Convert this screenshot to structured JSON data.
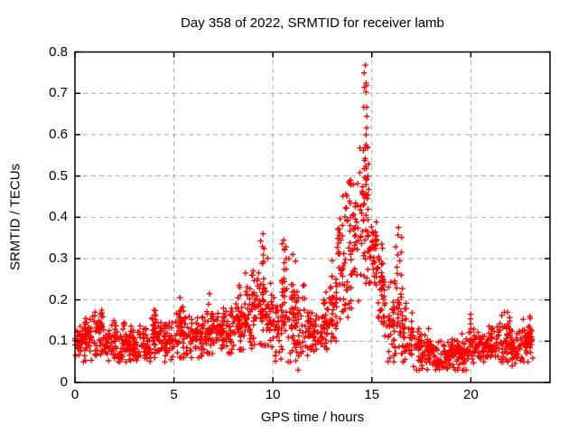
{
  "figure": {
    "title": "Day 358 of 2022, SRMTID for receiver lamb",
    "background": "#ffffff"
  },
  "chart_data": {
    "type": "scatter",
    "title": "Day 358 of 2022, SRMTID for receiver lamb",
    "xlabel": "GPS time / hours",
    "ylabel": "SRMTID / TECUs",
    "xlim": [
      0,
      24
    ],
    "ylim": [
      0,
      0.8
    ],
    "xticks": [
      0,
      5,
      10,
      15,
      20
    ],
    "xtick_labels": [
      "0",
      "5",
      "10",
      "15",
      "20"
    ],
    "yticks": [
      0,
      0.1,
      0.2,
      0.3,
      0.4,
      0.5,
      0.6,
      0.7,
      0.8
    ],
    "ytick_labels": [
      "0",
      "0.1",
      "0.2",
      "0.3",
      "0.4",
      "0.5",
      "0.6",
      "0.7",
      "0.8"
    ],
    "grid": {
      "on": true,
      "color": "#aaaaaa",
      "dash": "5,4"
    },
    "border_color": "#000000",
    "marker": {
      "glyph": "plus",
      "color": "#ff0000",
      "half_arm": 3.2,
      "stroke_width": 1.35
    },
    "legend": null,
    "data_start_hour": 0.0,
    "data_end_hour": 23.15,
    "peak": {
      "hour": 14.7,
      "value": 0.77
    },
    "seed": 1358,
    "band_envelope": [
      {
        "t0": 0.0,
        "t1": 0.5,
        "lo": 0.05,
        "hi": 0.14,
        "c": 0.095,
        "n": 36
      },
      {
        "t0": 0.5,
        "t1": 1.0,
        "lo": 0.04,
        "hi": 0.16,
        "c": 0.1,
        "n": 36
      },
      {
        "t0": 1.0,
        "t1": 1.5,
        "lo": 0.05,
        "hi": 0.17,
        "c": 0.105,
        "n": 36
      },
      {
        "t0": 1.5,
        "t1": 2.1,
        "lo": 0.05,
        "hi": 0.15,
        "c": 0.095,
        "n": 42
      },
      {
        "t0": 2.1,
        "t1": 2.8,
        "lo": 0.05,
        "hi": 0.14,
        "c": 0.09,
        "n": 48
      },
      {
        "t0": 2.8,
        "t1": 3.4,
        "lo": 0.04,
        "hi": 0.14,
        "c": 0.09,
        "n": 42
      },
      {
        "t0": 3.4,
        "t1": 3.8,
        "lo": 0.03,
        "hi": 0.13,
        "c": 0.085,
        "n": 28
      },
      {
        "t0": 3.8,
        "t1": 4.3,
        "lo": 0.06,
        "hi": 0.17,
        "c": 0.11,
        "n": 38
      },
      {
        "t0": 4.3,
        "t1": 5.0,
        "lo": 0.05,
        "hi": 0.15,
        "c": 0.1,
        "n": 50
      },
      {
        "t0": 5.0,
        "t1": 5.6,
        "lo": 0.06,
        "hi": 0.2,
        "c": 0.12,
        "n": 44
      },
      {
        "t0": 5.6,
        "t1": 6.4,
        "lo": 0.06,
        "hi": 0.17,
        "c": 0.11,
        "n": 56
      },
      {
        "t0": 6.4,
        "t1": 7.0,
        "lo": 0.07,
        "hi": 0.21,
        "c": 0.125,
        "n": 44
      },
      {
        "t0": 7.0,
        "t1": 7.9,
        "lo": 0.07,
        "hi": 0.18,
        "c": 0.12,
        "n": 62
      },
      {
        "t0": 7.9,
        "t1": 8.6,
        "lo": 0.08,
        "hi": 0.23,
        "c": 0.14,
        "n": 50
      },
      {
        "t0": 8.6,
        "t1": 9.2,
        "lo": 0.08,
        "hi": 0.27,
        "c": 0.15,
        "n": 44
      },
      {
        "t0": 9.2,
        "t1": 9.75,
        "lo": 0.09,
        "hi": 0.35,
        "c": 0.18,
        "n": 44
      },
      {
        "t0": 9.75,
        "t1": 10.15,
        "lo": 0.05,
        "hi": 0.24,
        "c": 0.14,
        "n": 30
      },
      {
        "t0": 10.15,
        "t1": 10.45,
        "lo": 0.04,
        "hi": 0.2,
        "c": 0.12,
        "n": 22
      },
      {
        "t0": 10.45,
        "t1": 10.75,
        "lo": 0.08,
        "hi": 0.34,
        "c": 0.17,
        "n": 24
      },
      {
        "t0": 10.75,
        "t1": 11.15,
        "lo": 0.05,
        "hi": 0.3,
        "c": 0.14,
        "n": 30
      },
      {
        "t0": 11.15,
        "t1": 11.65,
        "lo": 0.03,
        "hi": 0.24,
        "c": 0.12,
        "n": 36
      },
      {
        "t0": 11.65,
        "t1": 12.3,
        "lo": 0.06,
        "hi": 0.18,
        "c": 0.12,
        "n": 46
      },
      {
        "t0": 12.3,
        "t1": 12.85,
        "lo": 0.08,
        "hi": 0.22,
        "c": 0.14,
        "n": 40
      },
      {
        "t0": 12.85,
        "t1": 13.25,
        "lo": 0.1,
        "hi": 0.29,
        "c": 0.17,
        "n": 30
      },
      {
        "t0": 13.25,
        "t1": 13.8,
        "lo": 0.14,
        "hi": 0.46,
        "c": 0.27,
        "n": 48
      },
      {
        "t0": 13.8,
        "t1": 14.35,
        "lo": 0.18,
        "hi": 0.52,
        "c": 0.33,
        "n": 48
      },
      {
        "t0": 14.35,
        "t1": 14.9,
        "lo": 0.24,
        "hi": 0.62,
        "c": 0.38,
        "n": 50
      },
      {
        "t0": 14.9,
        "t1": 15.25,
        "lo": 0.2,
        "hi": 0.42,
        "c": 0.32,
        "n": 34
      },
      {
        "t0": 15.25,
        "t1": 15.65,
        "lo": 0.12,
        "hi": 0.33,
        "c": 0.21,
        "n": 32
      },
      {
        "t0": 15.65,
        "t1": 16.15,
        "lo": 0.05,
        "hi": 0.25,
        "c": 0.13,
        "n": 36
      },
      {
        "t0": 16.15,
        "t1": 16.55,
        "lo": 0.07,
        "hi": 0.37,
        "c": 0.17,
        "n": 30
      },
      {
        "t0": 16.55,
        "t1": 17.1,
        "lo": 0.05,
        "hi": 0.2,
        "c": 0.11,
        "n": 40
      },
      {
        "t0": 17.1,
        "t1": 17.9,
        "lo": 0.03,
        "hi": 0.13,
        "c": 0.075,
        "n": 56
      },
      {
        "t0": 17.9,
        "t1": 19.0,
        "lo": 0.02,
        "hi": 0.1,
        "c": 0.06,
        "n": 78
      },
      {
        "t0": 19.0,
        "t1": 19.9,
        "lo": 0.03,
        "hi": 0.12,
        "c": 0.07,
        "n": 64
      },
      {
        "t0": 19.9,
        "t1": 20.7,
        "lo": 0.04,
        "hi": 0.13,
        "c": 0.08,
        "n": 56
      },
      {
        "t0": 20.7,
        "t1": 21.4,
        "lo": 0.05,
        "hi": 0.15,
        "c": 0.09,
        "n": 50
      },
      {
        "t0": 21.4,
        "t1": 22.0,
        "lo": 0.05,
        "hi": 0.17,
        "c": 0.1,
        "n": 44
      },
      {
        "t0": 22.0,
        "t1": 22.6,
        "lo": 0.04,
        "hi": 0.14,
        "c": 0.08,
        "n": 42
      },
      {
        "t0": 22.6,
        "t1": 23.15,
        "lo": 0.05,
        "hi": 0.16,
        "c": 0.1,
        "n": 40
      }
    ],
    "spike_columns": [
      {
        "t": 0.55,
        "base": 0.1,
        "top": 0.155,
        "n": 6
      },
      {
        "t": 1.35,
        "base": 0.1,
        "top": 0.175,
        "n": 8
      },
      {
        "t": 2.5,
        "base": 0.09,
        "top": 0.145,
        "n": 5
      },
      {
        "t": 4.0,
        "base": 0.11,
        "top": 0.175,
        "n": 8
      },
      {
        "t": 5.3,
        "base": 0.12,
        "top": 0.205,
        "n": 9
      },
      {
        "t": 6.8,
        "base": 0.12,
        "top": 0.215,
        "n": 9
      },
      {
        "t": 7.5,
        "base": 0.11,
        "top": 0.18,
        "n": 6
      },
      {
        "t": 8.3,
        "base": 0.13,
        "top": 0.235,
        "n": 9
      },
      {
        "t": 9.0,
        "base": 0.13,
        "top": 0.27,
        "n": 10
      },
      {
        "t": 9.5,
        "base": 0.15,
        "top": 0.36,
        "n": 14
      },
      {
        "t": 10.55,
        "base": 0.15,
        "top": 0.345,
        "n": 10
      },
      {
        "t": 11.0,
        "base": 0.13,
        "top": 0.31,
        "n": 10
      },
      {
        "t": 13.0,
        "base": 0.14,
        "top": 0.295,
        "n": 9
      },
      {
        "t": 14.68,
        "base": 0.4,
        "top": 0.768,
        "n": 22
      },
      {
        "t": 15.5,
        "base": 0.14,
        "top": 0.335,
        "n": 10
      },
      {
        "t": 16.35,
        "base": 0.12,
        "top": 0.375,
        "n": 12
      },
      {
        "t": 20.0,
        "base": 0.09,
        "top": 0.165,
        "n": 8
      },
      {
        "t": 21.85,
        "base": 0.1,
        "top": 0.17,
        "n": 8
      },
      {
        "t": 23.0,
        "base": 0.09,
        "top": 0.155,
        "n": 6
      }
    ]
  }
}
